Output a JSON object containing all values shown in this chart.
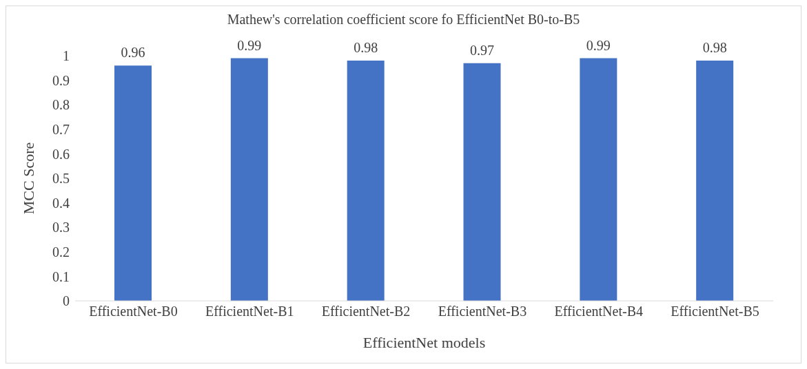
{
  "chart_data": {
    "type": "bar",
    "title": "Mathew's correlation coefficient score fo EfficientNet B0-to-B5",
    "xlabel": "EfficientNet models",
    "ylabel": "MCC Score",
    "categories": [
      "EfficientNet-B0",
      "EfficientNet-B1",
      "EfficientNet-B2",
      "EfficientNet-B3",
      "EfficientNet-B4",
      "EfficientNet-B5"
    ],
    "values": [
      0.96,
      0.99,
      0.98,
      0.97,
      0.99,
      0.98
    ],
    "color": "#4472c4",
    "data_labels": true,
    "ylim": [
      0,
      1
    ],
    "yticks": [
      0,
      0.1,
      0.2,
      0.3,
      0.4,
      0.5,
      0.6,
      0.7,
      0.8,
      0.9,
      1
    ],
    "grid": false,
    "legend": false
  }
}
